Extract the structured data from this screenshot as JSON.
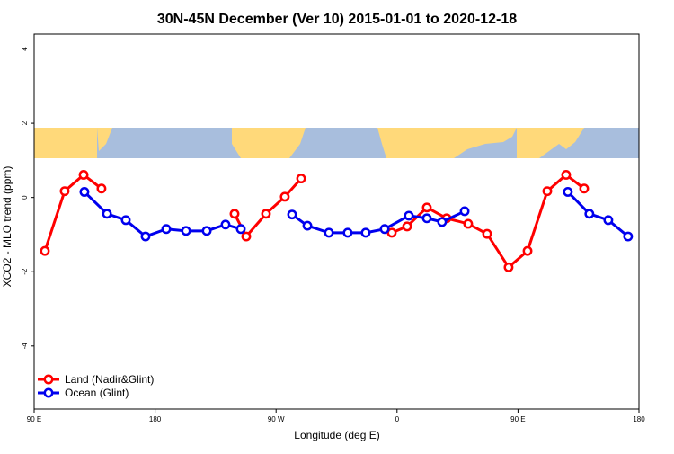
{
  "chart_data": {
    "type": "line",
    "title": "30N-45N December (Ver 10)   2015-01-01 to 2020-12-18",
    "xlabel": "Longitude (deg E)",
    "ylabel": "XCO2 - MLO trend (ppm)",
    "xlim": [
      90,
      540
    ],
    "ylim": [
      -5.7,
      4.4
    ],
    "xticks": [
      {
        "value": 90,
        "label": "90 E"
      },
      {
        "value": 180,
        "label": "180"
      },
      {
        "value": 270,
        "label": "90 W"
      },
      {
        "value": 360,
        "label": "0"
      },
      {
        "value": 450,
        "label": "90 E"
      },
      {
        "value": 540,
        "label": "180"
      }
    ],
    "yticks": [
      -4,
      -2,
      0,
      2,
      4
    ],
    "legend": "bottom-left",
    "series": [
      {
        "name": "Land (Nadir&Glint)",
        "color": "#ff0000",
        "x": [
          98,
          112.7,
          126.8,
          140.1,
          null,
          239.1,
          247.8,
          262.5,
          276.5,
          288.6,
          null,
          356.1,
          367.5,
          382.2,
          396.9,
          412.9,
          427,
          443,
          457.1,
          471.8,
          485.8,
          499.2
        ],
        "values": [
          -1.44,
          0.17,
          0.61,
          0.24,
          null,
          -0.44,
          -1.05,
          -0.44,
          0.02,
          0.51,
          null,
          -0.95,
          -0.78,
          -0.27,
          -0.56,
          -0.71,
          -0.98,
          -1.88,
          -1.44,
          0.17,
          0.61,
          0.24
        ]
      },
      {
        "name": "Ocean (Glint)",
        "color": "#0000ee",
        "x": [
          127.4,
          144.2,
          158.2,
          172.9,
          188.3,
          203,
          218.4,
          232.4,
          243.8,
          null,
          281.9,
          293.3,
          309.3,
          323.3,
          336.7,
          350.8,
          368.8,
          382.2,
          393.5,
          410.3,
          null,
          487.1,
          503.1,
          517.2,
          531.9
        ],
        "values": [
          0.15,
          -0.44,
          -0.61,
          -1.05,
          -0.85,
          -0.9,
          -0.9,
          -0.73,
          -0.85,
          null,
          -0.46,
          -0.76,
          -0.95,
          -0.95,
          -0.95,
          -0.85,
          -0.49,
          -0.56,
          -0.66,
          -0.37,
          null,
          0.15,
          -0.44,
          -0.61,
          -1.05
        ]
      }
    ]
  }
}
